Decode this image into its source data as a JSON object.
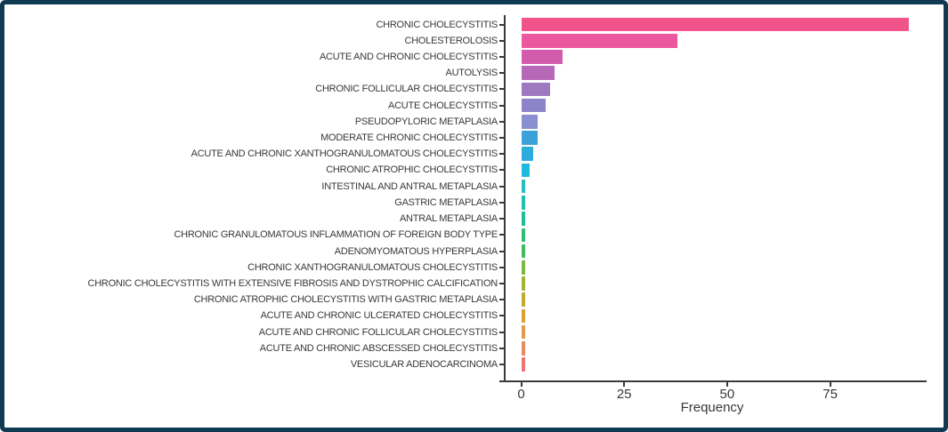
{
  "frame": {
    "border_color": "#113a52",
    "background": "#ffffff"
  },
  "axis": {
    "line_color": "#3a3a3a",
    "text_color": "#383838"
  },
  "chart_data": {
    "type": "bar",
    "orientation": "horizontal",
    "title": "",
    "xlabel": "Frequency",
    "ylabel": "",
    "xlim": [
      0,
      98
    ],
    "x_ticks": [
      0,
      25,
      50,
      75
    ],
    "grid": false,
    "legend": false,
    "categories": [
      "CHRONIC CHOLECYSTITIS",
      "CHOLESTEROLOSIS",
      "ACUTE AND CHRONIC CHOLECYSTITIS",
      "AUTOLYSIS",
      "CHRONIC FOLLICULAR CHOLECYSTITIS",
      "ACUTE CHOLECYSTITIS",
      "PSEUDOPYLORIC METAPLASIA",
      "MODERATE CHRONIC CHOLECYSTITIS",
      "ACUTE AND CHRONIC XANTHOGRANULOMATOUS CHOLECYSTITIS",
      "CHRONIC ATROPHIC CHOLECYSTITIS",
      "INTESTINAL AND ANTRAL METAPLASIA",
      "GASTRIC METAPLASIA",
      "ANTRAL METAPLASIA",
      "CHRONIC GRANULOMATOUS INFLAMMATION OF FOREIGN BODY TYPE",
      "ADENOMYOMATOUS HYPERPLASIA",
      "CHRONIC XANTHOGRANULOMATOUS CHOLECYSTITIS",
      "CHRONIC CHOLECYSTITIS WITH EXTENSIVE FIBROSIS AND DYSTROPHIC CALCIFICATION",
      "CHRONIC ATROPHIC CHOLECYSTITIS WITH GASTRIC METAPLASIA",
      "ACUTE AND CHRONIC ULCERATED CHOLECYSTITIS",
      "ACUTE AND CHRONIC FOLLICULAR CHOLECYSTITIS",
      "ACUTE AND CHRONIC ABSCESSED CHOLECYSTITIS",
      "VESICULAR ADENOCARCINOMA"
    ],
    "values": [
      94,
      38,
      10,
      8,
      7,
      6,
      4,
      4,
      3,
      2,
      1,
      1,
      1,
      1,
      1,
      1,
      1,
      1,
      1,
      1,
      1,
      1
    ],
    "bar_colors": [
      "#F0548B",
      "#EC579D",
      "#D35BAC",
      "#B569B6",
      "#9E79C0",
      "#8B84C8",
      "#8A8FD2",
      "#3BA2D9",
      "#2FACDE",
      "#1EB9DE",
      "#28BFC2",
      "#20BFAE",
      "#1FBF93",
      "#2CBE75",
      "#41BD5A",
      "#7CBA3E",
      "#A6B436",
      "#C1AB33",
      "#D8A233",
      "#E39A49",
      "#EA8A61",
      "#ED7573"
    ]
  }
}
